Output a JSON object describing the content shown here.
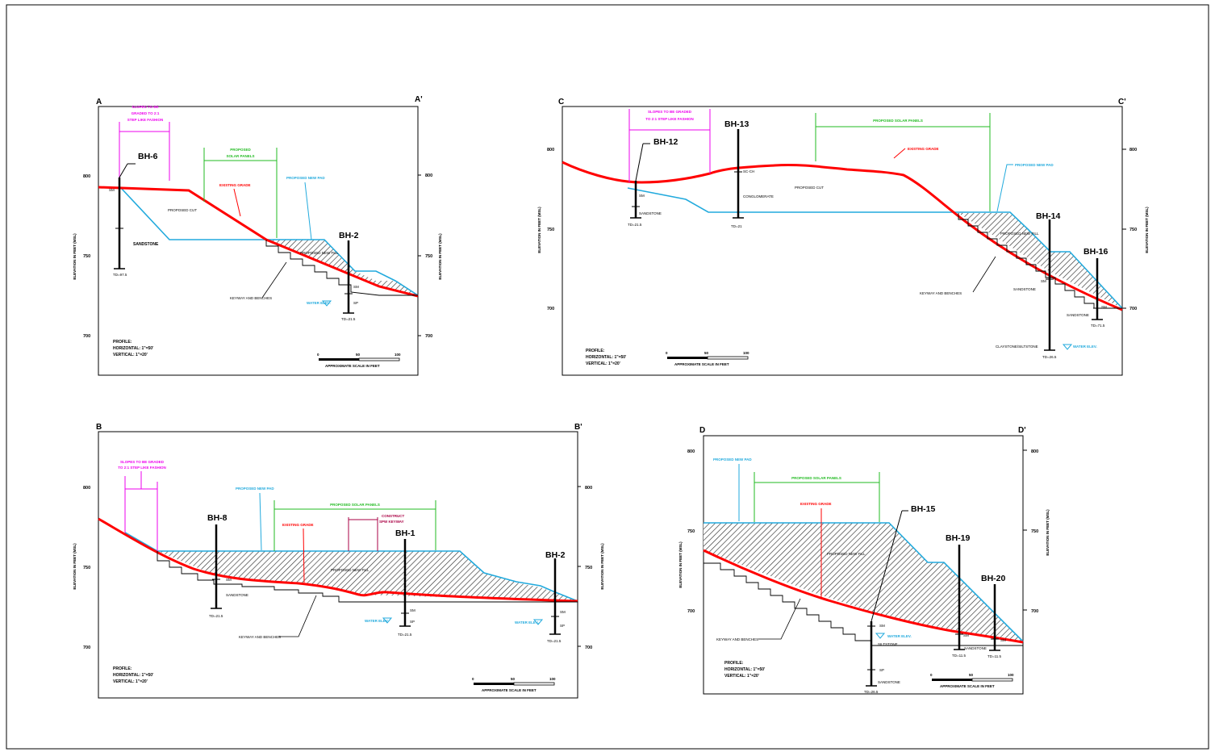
{
  "colors": {
    "existing_grade": "#ff0000",
    "proposed_pad": "#22aadd",
    "slopes": "#ee00ee",
    "solar": "#22bb22",
    "ink": "#000000"
  },
  "panel_a": {
    "left_label": "A",
    "right_label": "A'",
    "slopes_note": [
      "SLOPES TO BE",
      "GRADED TO 2:1",
      "STEP LIKE FASHION"
    ],
    "solar_note": [
      "PROPOSED",
      "SOLAR PANELS"
    ],
    "grade_note": "EXISTING GRADE",
    "pad_note": "PROPOSED NEW PAD",
    "cut_note": "PROPOSED CUT",
    "fill_note": "PROPOSED NEW FILL",
    "keyway_note": "KEYWAY AND BENCHES",
    "soil_note": "SANDSTONE",
    "water_note": "WATER ELEV.",
    "bh_left": "BH-6",
    "bh_left_td": "TD=97.5",
    "bh_right": "BH-2",
    "bh_right_td": "TD=21.5",
    "bh_left_sm": "SM",
    "bh_right_sm": "SM",
    "bh_right_sp": "SP",
    "elev_label": "ELEVATION IN FEET (MSL)",
    "ticks_left": [
      "800",
      "750",
      "700"
    ],
    "ticks_right": [
      "800",
      "750",
      "700"
    ],
    "profile": [
      "PROFILE:",
      "HORIZONTAL: 1\"=50'",
      "VERTICAL: 1\"=20'"
    ],
    "scale_nums": [
      "0",
      "50",
      "100"
    ],
    "scale_title": "APPROXIMATE SCALE IN FEET"
  },
  "panel_b": {
    "left_label": "B",
    "right_label": "B'",
    "slopes_note": [
      "SLOPES TO BE GRADED",
      "TO 2:1 STEP LIKE FASHION"
    ],
    "solar_note": "PROPOSED SOLAR PANELS",
    "grade_note": "EXISTING GRADE",
    "pad_note": "PROPOSED NEW PAD",
    "fill_note": "PROPOSED NEW FILL",
    "keyway_note": "KEYWAY AND BENCHES",
    "construct_note": [
      "CONSTRUCT",
      "SPW KEYWAY"
    ],
    "soil_note": "SANDSTONE",
    "water_note_1": "WATER ELEV.",
    "water_note_2": "WATER ELEV.",
    "bh_1": "BH-8",
    "bh_1_td": "TD=21.5",
    "bh_1_sm": "SM",
    "bh_2": "BH-1",
    "bh_2_td": "TD=21.5",
    "bh_2_sm": "SM",
    "bh_2_sp": "SP",
    "bh_3": "BH-2",
    "bh_3_td": "TD=21.5",
    "bh_3_sm": "SM",
    "bh_3_sp": "SP",
    "elev_label": "ELEVATION IN FEET (MSL)",
    "ticks_left": [
      "800",
      "750",
      "700"
    ],
    "ticks_right": [
      "800",
      "750",
      "700"
    ],
    "profile": [
      "PROFILE:",
      "HORIZONTAL: 1\"=50'",
      "VERTICAL: 1\"=20'"
    ],
    "scale_nums": [
      "0",
      "50",
      "100"
    ],
    "scale_title": "APPROXIMATE SCALE IN FEET"
  },
  "panel_c": {
    "left_label": "C",
    "right_label": "C'",
    "slopes_note": [
      "SLOPES TO BE GRADED",
      "TO 2:1 STEP LIKE FASHION"
    ],
    "solar_note": "PROPOSED SOLAR PANELS",
    "grade_note": "EXISTING GRADE",
    "pad_note": "PROPOSED NEW PAD",
    "cut_note": "PROPOSED CUT",
    "fill_note": "PROPOSED NEW FILL",
    "keyway_note": "KEYWAY AND BENCHES",
    "bh_12": "BH-12",
    "bh_12_td": "TD=21.5",
    "bh_12_sm": "SM",
    "bh_12_soil": "SANDSTONE",
    "bh_13": "BH-13",
    "bh_13_td": "TD=21",
    "bh_13_top": "SC-CH",
    "bh_13_soil": "CONGLOMERATE",
    "bh_14": "BH-14",
    "bh_14_td": "TD=26.5",
    "bh_14_sm": "SM",
    "bh_14_soil": "SANDSTONE",
    "bh_14_clay": "CLAYSTONE/SILTSTONE",
    "bh_16": "BH-16",
    "bh_16_td": "TD=71.5",
    "bh_16_sm": "SM",
    "bh_16_soil": "SANDSTONE",
    "water_note": "WATER ELEV.",
    "elev_label": "ELEVATION IN FEET (MSL)",
    "ticks_left": [
      "800",
      "750",
      "700"
    ],
    "ticks_right": [
      "800",
      "750",
      "700"
    ],
    "profile": [
      "PROFILE:",
      "HORIZONTAL: 1\"=50'",
      "VERTICAL: 1\"=20'"
    ],
    "scale_nums": [
      "0",
      "50",
      "100"
    ],
    "scale_title": "APPROXIMATE SCALE IN FEET"
  },
  "panel_d": {
    "left_label": "D",
    "right_label": "D'",
    "solar_note": "PROPOSED SOLAR PANELS",
    "grade_note": "EXISTING GRADE",
    "pad_note": "PROPOSED NEW PAD",
    "fill_note": "PROPOSED NEW FILL",
    "keyway_note": "KEYWAY AND BENCHES",
    "bh_15": "BH-15",
    "bh_15_td": "TD=26.5",
    "bh_15_sm": "SM",
    "bh_15_silt": "SILTSTONE",
    "bh_15_sp": "SP",
    "bh_15_soil": "SANDSTONE",
    "bh_19": "BH-19",
    "bh_19_td": "TD=11.5",
    "bh_19_sm": "SM",
    "bh_19_soil": "SANDSTONE",
    "bh_20": "BH-20",
    "bh_20_td": "TD=11.5",
    "bh_20_sm": "SM",
    "water_note": "WATER ELEV.",
    "elev_label": "ELEVATION IN FEET (MSL)",
    "ticks_left": [
      "800",
      "750",
      "700"
    ],
    "ticks_right": [
      "800",
      "750",
      "700"
    ],
    "profile": [
      "PROFILE:",
      "HORIZONTAL: 1\"=50'",
      "VERTICAL: 1\"=20'"
    ],
    "scale_nums": [
      "0",
      "50",
      "100"
    ],
    "scale_title": "APPROXIMATE SCALE IN FEET"
  }
}
